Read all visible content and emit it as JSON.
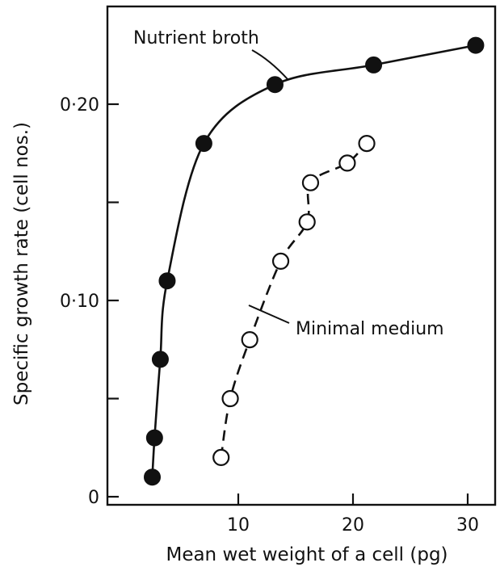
{
  "chart_data": {
    "type": "scatter",
    "xlabel": "Mean wet weight of a cell (pg)",
    "ylabel": "Specific growth rate (cell nos.)",
    "xlim": [
      0,
      32
    ],
    "ylim": [
      -0.005,
      0.25
    ],
    "x_ticks": [
      10,
      20,
      30
    ],
    "x_tick_labels": [
      "10",
      "20",
      "30"
    ],
    "y_ticks": [
      0,
      0.1,
      0.2
    ],
    "y_tick_labels": [
      "0",
      "0·10",
      "0·20"
    ],
    "y_minor_ticks": [
      0.05,
      0.15
    ],
    "grid": false,
    "series": [
      {
        "name": "Nutrient broth",
        "marker": "filled-circle",
        "line": "solid",
        "x": [
          2.5,
          2.7,
          3.2,
          3.8,
          7.0,
          13.2,
          21.8,
          30.7
        ],
        "y": [
          0.01,
          0.03,
          0.07,
          0.11,
          0.18,
          0.21,
          0.22,
          0.23
        ]
      },
      {
        "name": "Minimal medium",
        "marker": "open-circle",
        "line": "dashed",
        "x": [
          8.5,
          9.3,
          11.0,
          13.7,
          16.0,
          16.3,
          19.5,
          21.2
        ],
        "y": [
          0.02,
          0.05,
          0.08,
          0.12,
          0.14,
          0.16,
          0.17,
          0.18
        ]
      }
    ],
    "annotations": [
      {
        "text": "Nutrient broth",
        "series": "Nutrient broth"
      },
      {
        "text": "Minimal medium",
        "series": "Minimal medium"
      }
    ],
    "colors": {
      "ink": "#111111",
      "background": "#ffffff"
    }
  }
}
